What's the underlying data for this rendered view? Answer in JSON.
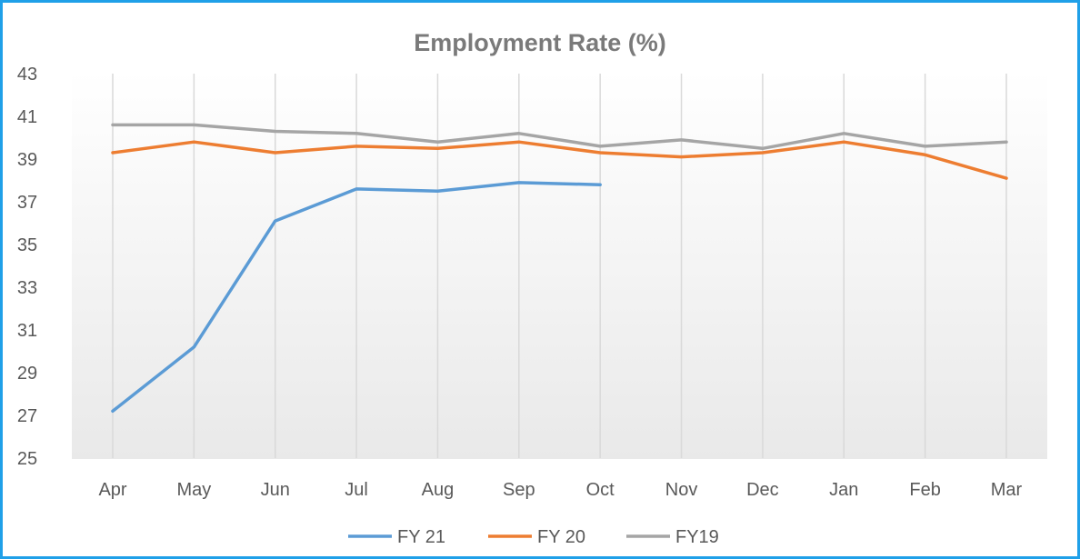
{
  "chart_data": {
    "type": "line",
    "title": "Employment Rate (%)",
    "xlabel": "",
    "ylabel": "",
    "categories": [
      "Apr",
      "May",
      "Jun",
      "Jul",
      "Aug",
      "Sep",
      "Oct",
      "Nov",
      "Dec",
      "Jan",
      "Feb",
      "Mar"
    ],
    "ylim": [
      25,
      43
    ],
    "yticks": [
      "25",
      "27",
      "29",
      "31",
      "33",
      "35",
      "37",
      "39",
      "41",
      "43"
    ],
    "grid": "vertical",
    "legend_position": "bottom",
    "series": [
      {
        "name": "FY 21",
        "color": "#5b9bd5",
        "values": [
          27.2,
          30.2,
          36.1,
          37.6,
          37.5,
          37.9,
          37.8,
          null,
          null,
          null,
          null,
          null
        ]
      },
      {
        "name": "FY 20",
        "color": "#ed7d31",
        "values": [
          39.3,
          39.8,
          39.3,
          39.6,
          39.5,
          39.8,
          39.3,
          39.1,
          39.3,
          39.8,
          39.2,
          38.1
        ]
      },
      {
        "name": "FY19",
        "color": "#a5a5a5",
        "values": [
          40.6,
          40.6,
          40.3,
          40.2,
          39.8,
          40.2,
          39.6,
          39.9,
          39.5,
          40.2,
          39.6,
          39.8
        ]
      }
    ]
  }
}
